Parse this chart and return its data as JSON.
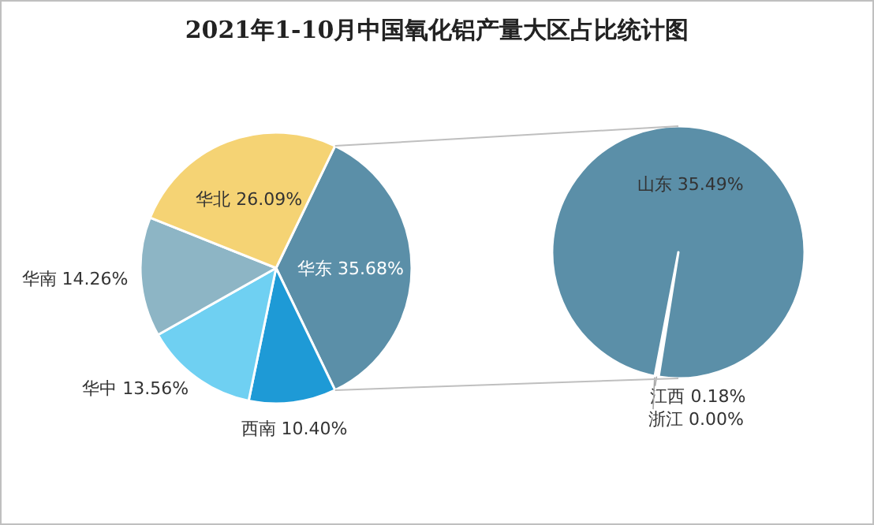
{
  "chart_data": [
    {
      "type": "pie",
      "title": "2021年1-10月中国氧化铝产量大区占比统计图",
      "categories": [
        "华东",
        "西南",
        "华中",
        "华南",
        "华北"
      ],
      "values": [
        35.68,
        10.4,
        13.56,
        14.26,
        26.09
      ],
      "value_labels": [
        "35.68%",
        "10.40%",
        "13.56%",
        "14.26%",
        "26.09%"
      ],
      "colors": [
        "#5b8fa8",
        "#1e9ad6",
        "#6fd0f2",
        "#8db5c5",
        "#f5d374"
      ]
    },
    {
      "type": "pie",
      "categories": [
        "江西",
        "浙江",
        "山东"
      ],
      "values": [
        0.18,
        0.0,
        35.49
      ],
      "value_labels": [
        "0.18%",
        "0.00%",
        "35.49%"
      ],
      "colors": [
        "#ffffff",
        "#d9e6ec",
        "#5b8fa8"
      ]
    }
  ]
}
